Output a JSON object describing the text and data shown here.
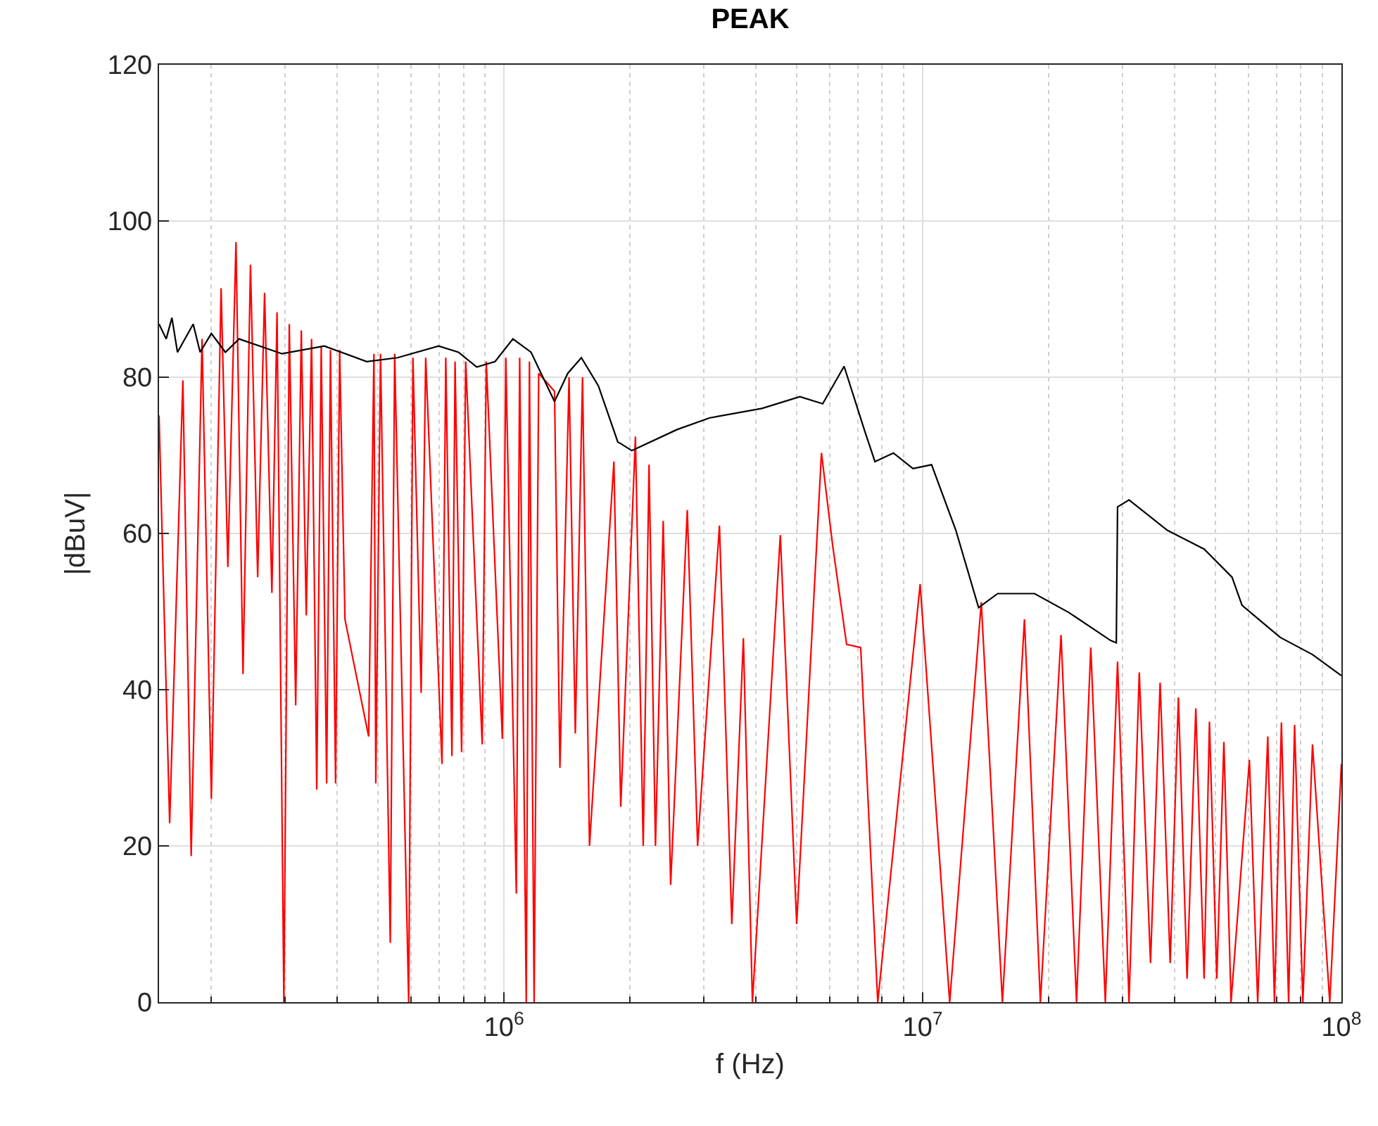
{
  "chart_data": {
    "type": "line",
    "title": "PEAK",
    "xlabel": "f (Hz)",
    "ylabel": "|dBuV|",
    "log": "x",
    "grid": true,
    "marker": "none",
    "line_style": "solid",
    "xlim": [
      150000,
      100000000
    ],
    "xticks": [
      {
        "value": 1000000,
        "label": "10$^{6}$"
      },
      {
        "value": 10000000,
        "label": "10$^{7}$"
      },
      {
        "value": 100000000,
        "label": "10$^{8}$"
      }
    ],
    "ylim": [
      0,
      120
    ],
    "yticks": [
      0,
      20,
      40,
      60,
      80,
      100,
      120
    ],
    "series": [
      {
        "color": "#ff0000",
        "x": [
          150000,
          159000,
          171000,
          179000,
          190000,
          200000,
          211000,
          219000,
          229000,
          238000,
          248000,
          258000,
          268000,
          279000,
          287000,
          298000,
          307000,
          318000,
          328000,
          337000,
          347000,
          357000,
          366000,
          377000,
          385000,
          396000,
          405000,
          417000,
          475000,
          489000,
          494000,
          507000,
          535000,
          548000,
          592000,
          606000,
          634000,
          650000,
          711000,
          726000,
          751000,
          764000,
          792000,
          810000,
          887000,
          907000,
          991000,
          1010000,
          1070000,
          1090000,
          1130000,
          1150000,
          1180000,
          1210000,
          1320000,
          1360000,
          1430000,
          1480000,
          1540000,
          1600000,
          1830000,
          1900000,
          2060000,
          2150000,
          2220000,
          2300000,
          2400000,
          2500000,
          2740000,
          2900000,
          3270000,
          3500000,
          3730000,
          3920000,
          4570000,
          5000000,
          5730000,
          6090000,
          6580000,
          7110000,
          7810000,
          9860000,
          11600000,
          13800000,
          15500000,
          17500000,
          19100000,
          21400000,
          23300000,
          25200000,
          27300000,
          29200000,
          31100000,
          32900000,
          35000000,
          36900000,
          39000000,
          40800000,
          42800000,
          44900000,
          47000000,
          48400000,
          50400000,
          52400000,
          54500000,
          60300000,
          63100000,
          66700000,
          69200000,
          71900000,
          74800000,
          77300000,
          80900000,
          85300000,
          93800000,
          100000000
        ],
        "values": [
          75.1,
          22.9,
          79.6,
          18.7,
          84.9,
          26,
          91.4,
          55.7,
          97.3,
          42,
          94.4,
          54.4,
          90.8,
          52.4,
          88.3,
          0,
          86.8,
          38,
          86,
          49.5,
          84.9,
          27.2,
          84,
          28,
          83.5,
          28,
          83.5,
          49,
          34,
          83,
          28,
          83,
          7.6,
          83,
          0,
          82.5,
          39.6,
          82.5,
          30.5,
          82.5,
          31.5,
          82,
          32,
          82,
          33,
          82,
          33.7,
          82.5,
          13.9,
          82.5,
          0,
          82,
          0,
          80.5,
          78.2,
          30,
          80,
          34.4,
          80,
          20,
          69.2,
          25,
          72.4,
          20,
          68.8,
          20,
          61.6,
          15,
          63,
          20,
          61,
          10,
          46.6,
          0,
          59.8,
          10,
          70.3,
          58.6,
          45.8,
          45.4,
          0,
          53.5,
          0,
          51.2,
          0,
          49,
          0,
          47,
          0,
          45.4,
          0,
          43.6,
          0,
          42.2,
          5,
          40.9,
          5,
          39,
          3,
          37.6,
          3,
          35.9,
          3,
          33.3,
          0,
          31,
          0,
          34,
          0,
          35.8,
          0,
          35.5,
          0,
          33,
          0,
          30.5
        ]
      },
      {
        "color": "#000000",
        "x": [
          150000,
          156000,
          161000,
          166000,
          181000,
          188000,
          200000,
          216000,
          233000,
          295000,
          372000,
          470000,
          557000,
          698000,
          778000,
          861000,
          952000,
          1050000,
          1160000,
          1320000,
          1420000,
          1530000,
          1680000,
          1870000,
          1900000,
          2020000,
          2590000,
          3100000,
          4130000,
          5090000,
          5770000,
          6490000,
          7280000,
          7690000,
          8510000,
          9480000,
          10500000,
          12000000,
          13600000,
          15100000,
          18500000,
          22300000,
          28100000,
          29000000,
          29200000,
          31100000,
          38400000,
          47000000,
          54800000,
          57900000,
          71400000,
          85300000,
          100000000
        ],
        "values": [
          86.8,
          84.9,
          87.6,
          83.2,
          86.8,
          83.2,
          85.6,
          83.2,
          84.9,
          83,
          84,
          82,
          82.5,
          84,
          83.2,
          81.3,
          82,
          84.9,
          83.2,
          76.9,
          80.5,
          82.5,
          78.9,
          71.7,
          71.5,
          70.6,
          73.3,
          74.8,
          76,
          77.5,
          76.6,
          81.4,
          73,
          69.2,
          70.3,
          68.3,
          68.8,
          60.4,
          50.5,
          52.3,
          52.3,
          49.9,
          46.3,
          46,
          63.4,
          64.3,
          60.4,
          58,
          54.4,
          50.8,
          46.7,
          44.5,
          41.8
        ]
      }
    ]
  }
}
